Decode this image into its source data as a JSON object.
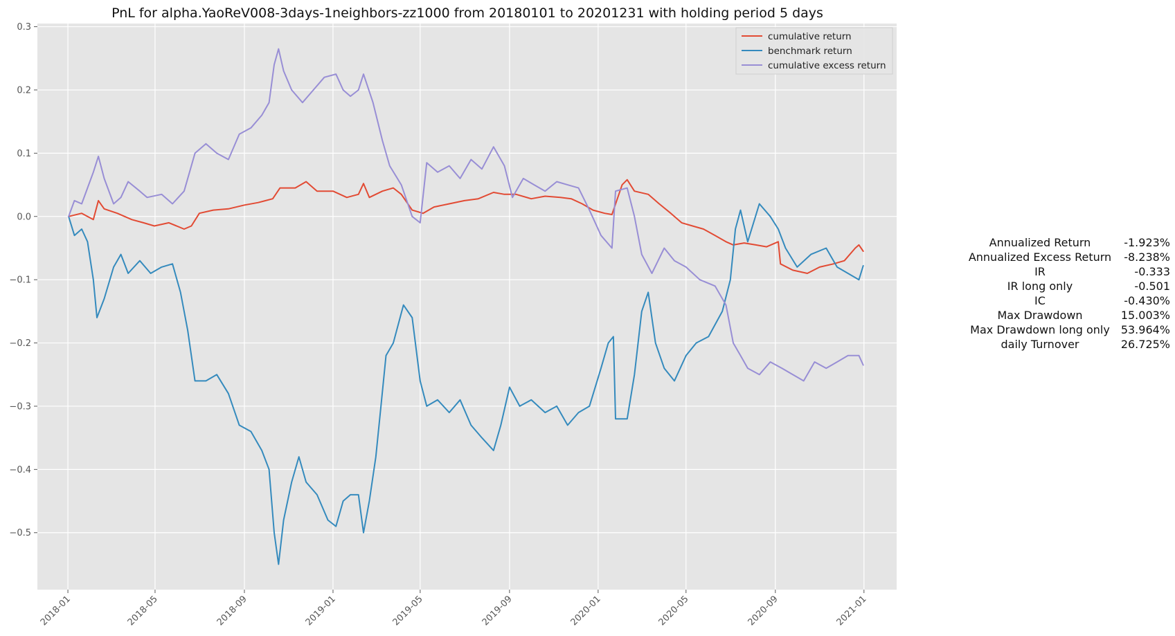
{
  "chart_data": {
    "type": "line",
    "title": "PnL for alpha.YaoReV008-3days-1neighbors-zz1000 from 20180101 to 20201231 with holding period 5 days",
    "xlabel": "",
    "ylabel": "",
    "x_range": [
      "2017-11-20",
      "2021-02-15"
    ],
    "ylim": [
      -0.59,
      0.305
    ],
    "grid": true,
    "legend_position": "top-right",
    "x_ticks": [
      "2018-01",
      "2018-05",
      "2018-09",
      "2019-01",
      "2019-05",
      "2019-09",
      "2020-01",
      "2020-05",
      "2020-09",
      "2021-01"
    ],
    "y_ticks": [
      0.3,
      0.2,
      0.1,
      0.0,
      -0.1,
      -0.2,
      -0.3,
      -0.4,
      -0.5
    ],
    "y_tick_labels": [
      "0.3",
      "0.2",
      "0.1",
      "0.0",
      "−0.1",
      "−0.2",
      "−0.3",
      "−0.4",
      "−0.5"
    ],
    "series": [
      {
        "name": "cumulative return",
        "color": "#e24a33",
        "points": [
          [
            "2018-01-02",
            0.0
          ],
          [
            "2018-01-20",
            0.005
          ],
          [
            "2018-02-05",
            -0.005
          ],
          [
            "2018-02-12",
            0.025
          ],
          [
            "2018-02-20",
            0.012
          ],
          [
            "2018-03-10",
            0.005
          ],
          [
            "2018-03-30",
            -0.005
          ],
          [
            "2018-04-15",
            -0.01
          ],
          [
            "2018-04-30",
            -0.015
          ],
          [
            "2018-05-20",
            -0.01
          ],
          [
            "2018-06-10",
            -0.02
          ],
          [
            "2018-06-20",
            -0.015
          ],
          [
            "2018-07-01",
            0.005
          ],
          [
            "2018-07-20",
            0.01
          ],
          [
            "2018-08-10",
            0.012
          ],
          [
            "2018-09-01",
            0.018
          ],
          [
            "2018-09-20",
            0.022
          ],
          [
            "2018-10-10",
            0.028
          ],
          [
            "2018-10-20",
            0.045
          ],
          [
            "2018-11-10",
            0.045
          ],
          [
            "2018-11-25",
            0.055
          ],
          [
            "2018-12-10",
            0.04
          ],
          [
            "2019-01-01",
            0.04
          ],
          [
            "2019-01-20",
            0.03
          ],
          [
            "2019-02-05",
            0.035
          ],
          [
            "2019-02-12",
            0.052
          ],
          [
            "2019-02-20",
            0.03
          ],
          [
            "2019-03-10",
            0.04
          ],
          [
            "2019-03-25",
            0.045
          ],
          [
            "2019-04-05",
            0.035
          ],
          [
            "2019-04-20",
            0.01
          ],
          [
            "2019-05-05",
            0.005
          ],
          [
            "2019-05-20",
            0.015
          ],
          [
            "2019-06-10",
            0.02
          ],
          [
            "2019-07-01",
            0.025
          ],
          [
            "2019-07-20",
            0.028
          ],
          [
            "2019-08-10",
            0.038
          ],
          [
            "2019-08-25",
            0.035
          ],
          [
            "2019-09-10",
            0.035
          ],
          [
            "2019-10-01",
            0.028
          ],
          [
            "2019-10-20",
            0.032
          ],
          [
            "2019-11-10",
            0.03
          ],
          [
            "2019-11-25",
            0.028
          ],
          [
            "2019-12-10",
            0.02
          ],
          [
            "2019-12-25",
            0.01
          ],
          [
            "2020-01-10",
            0.005
          ],
          [
            "2020-01-20",
            0.003
          ],
          [
            "2020-02-03",
            0.05
          ],
          [
            "2020-02-10",
            0.058
          ],
          [
            "2020-02-20",
            0.04
          ],
          [
            "2020-03-10",
            0.035
          ],
          [
            "2020-03-25",
            0.02
          ],
          [
            "2020-04-10",
            0.005
          ],
          [
            "2020-04-25",
            -0.01
          ],
          [
            "2020-05-10",
            -0.015
          ],
          [
            "2020-05-25",
            -0.02
          ],
          [
            "2020-06-10",
            -0.03
          ],
          [
            "2020-06-25",
            -0.04
          ],
          [
            "2020-07-05",
            -0.045
          ],
          [
            "2020-07-20",
            -0.042
          ],
          [
            "2020-08-05",
            -0.045
          ],
          [
            "2020-08-20",
            -0.048
          ],
          [
            "2020-09-05",
            -0.04
          ],
          [
            "2020-09-08",
            -0.075
          ],
          [
            "2020-09-25",
            -0.085
          ],
          [
            "2020-10-15",
            -0.09
          ],
          [
            "2020-11-01",
            -0.08
          ],
          [
            "2020-11-20",
            -0.075
          ],
          [
            "2020-12-05",
            -0.07
          ],
          [
            "2020-12-20",
            -0.05
          ],
          [
            "2020-12-25",
            -0.045
          ],
          [
            "2020-12-31",
            -0.055
          ]
        ]
      },
      {
        "name": "benchmark return",
        "color": "#348abd",
        "points": [
          [
            "2018-01-02",
            0.0
          ],
          [
            "2018-01-10",
            -0.03
          ],
          [
            "2018-01-20",
            -0.02
          ],
          [
            "2018-01-28",
            -0.04
          ],
          [
            "2018-02-05",
            -0.1
          ],
          [
            "2018-02-10",
            -0.16
          ],
          [
            "2018-02-20",
            -0.13
          ],
          [
            "2018-03-05",
            -0.08
          ],
          [
            "2018-03-15",
            -0.06
          ],
          [
            "2018-03-25",
            -0.09
          ],
          [
            "2018-04-10",
            -0.07
          ],
          [
            "2018-04-25",
            -0.09
          ],
          [
            "2018-05-10",
            -0.08
          ],
          [
            "2018-05-25",
            -0.075
          ],
          [
            "2018-06-05",
            -0.12
          ],
          [
            "2018-06-15",
            -0.18
          ],
          [
            "2018-06-25",
            -0.26
          ],
          [
            "2018-07-10",
            -0.26
          ],
          [
            "2018-07-25",
            -0.25
          ],
          [
            "2018-08-10",
            -0.28
          ],
          [
            "2018-08-25",
            -0.33
          ],
          [
            "2018-09-10",
            -0.34
          ],
          [
            "2018-09-25",
            -0.37
          ],
          [
            "2018-10-05",
            -0.4
          ],
          [
            "2018-10-12",
            -0.5
          ],
          [
            "2018-10-18",
            -0.55
          ],
          [
            "2018-10-25",
            -0.48
          ],
          [
            "2018-11-05",
            -0.42
          ],
          [
            "2018-11-15",
            -0.38
          ],
          [
            "2018-11-25",
            -0.42
          ],
          [
            "2018-12-10",
            -0.44
          ],
          [
            "2018-12-25",
            -0.48
          ],
          [
            "2019-01-05",
            -0.49
          ],
          [
            "2019-01-15",
            -0.45
          ],
          [
            "2019-01-25",
            -0.44
          ],
          [
            "2019-02-05",
            -0.44
          ],
          [
            "2019-02-12",
            -0.5
          ],
          [
            "2019-02-20",
            -0.45
          ],
          [
            "2019-03-01",
            -0.38
          ],
          [
            "2019-03-08",
            -0.3
          ],
          [
            "2019-03-15",
            -0.22
          ],
          [
            "2019-03-25",
            -0.2
          ],
          [
            "2019-04-08",
            -0.14
          ],
          [
            "2019-04-20",
            -0.16
          ],
          [
            "2019-05-01",
            -0.26
          ],
          [
            "2019-05-10",
            -0.3
          ],
          [
            "2019-05-25",
            -0.29
          ],
          [
            "2019-06-10",
            -0.31
          ],
          [
            "2019-06-25",
            -0.29
          ],
          [
            "2019-07-10",
            -0.33
          ],
          [
            "2019-07-25",
            -0.35
          ],
          [
            "2019-08-10",
            -0.37
          ],
          [
            "2019-08-20",
            -0.33
          ],
          [
            "2019-09-01",
            -0.27
          ],
          [
            "2019-09-15",
            -0.3
          ],
          [
            "2019-10-01",
            -0.29
          ],
          [
            "2019-10-20",
            -0.31
          ],
          [
            "2019-11-05",
            -0.3
          ],
          [
            "2019-11-20",
            -0.33
          ],
          [
            "2019-12-05",
            -0.31
          ],
          [
            "2019-12-20",
            -0.3
          ],
          [
            "2020-01-05",
            -0.24
          ],
          [
            "2020-01-15",
            -0.2
          ],
          [
            "2020-01-22",
            -0.19
          ],
          [
            "2020-01-25",
            -0.32
          ],
          [
            "2020-02-10",
            -0.32
          ],
          [
            "2020-02-20",
            -0.25
          ],
          [
            "2020-03-01",
            -0.15
          ],
          [
            "2020-03-10",
            -0.12
          ],
          [
            "2020-03-20",
            -0.2
          ],
          [
            "2020-04-01",
            -0.24
          ],
          [
            "2020-04-15",
            -0.26
          ],
          [
            "2020-05-01",
            -0.22
          ],
          [
            "2020-05-15",
            -0.2
          ],
          [
            "2020-06-01",
            -0.19
          ],
          [
            "2020-06-20",
            -0.15
          ],
          [
            "2020-07-01",
            -0.1
          ],
          [
            "2020-07-08",
            -0.02
          ],
          [
            "2020-07-15",
            0.01
          ],
          [
            "2020-07-25",
            -0.04
          ],
          [
            "2020-08-10",
            0.02
          ],
          [
            "2020-08-25",
            0.0
          ],
          [
            "2020-09-05",
            -0.02
          ],
          [
            "2020-09-15",
            -0.05
          ],
          [
            "2020-10-01",
            -0.08
          ],
          [
            "2020-10-20",
            -0.06
          ],
          [
            "2020-11-10",
            -0.05
          ],
          [
            "2020-11-25",
            -0.08
          ],
          [
            "2020-12-10",
            -0.09
          ],
          [
            "2020-12-25",
            -0.1
          ],
          [
            "2020-12-31",
            -0.078
          ]
        ]
      },
      {
        "name": "cumulative excess return",
        "color": "#988ed5",
        "points": [
          [
            "2018-01-02",
            0.0
          ],
          [
            "2018-01-10",
            0.025
          ],
          [
            "2018-01-20",
            0.02
          ],
          [
            "2018-02-05",
            0.07
          ],
          [
            "2018-02-12",
            0.095
          ],
          [
            "2018-02-20",
            0.06
          ],
          [
            "2018-03-05",
            0.02
          ],
          [
            "2018-03-15",
            0.03
          ],
          [
            "2018-03-25",
            0.055
          ],
          [
            "2018-04-10",
            0.04
          ],
          [
            "2018-04-20",
            0.03
          ],
          [
            "2018-05-10",
            0.035
          ],
          [
            "2018-05-25",
            0.02
          ],
          [
            "2018-06-10",
            0.04
          ],
          [
            "2018-06-25",
            0.1
          ],
          [
            "2018-07-10",
            0.115
          ],
          [
            "2018-07-25",
            0.1
          ],
          [
            "2018-08-10",
            0.09
          ],
          [
            "2018-08-25",
            0.13
          ],
          [
            "2018-09-10",
            0.14
          ],
          [
            "2018-09-25",
            0.16
          ],
          [
            "2018-10-05",
            0.18
          ],
          [
            "2018-10-12",
            0.24
          ],
          [
            "2018-10-18",
            0.265
          ],
          [
            "2018-10-25",
            0.23
          ],
          [
            "2018-11-05",
            0.2
          ],
          [
            "2018-11-20",
            0.18
          ],
          [
            "2018-12-05",
            0.2
          ],
          [
            "2018-12-20",
            0.22
          ],
          [
            "2019-01-05",
            0.225
          ],
          [
            "2019-01-15",
            0.2
          ],
          [
            "2019-01-25",
            0.19
          ],
          [
            "2019-02-05",
            0.2
          ],
          [
            "2019-02-12",
            0.225
          ],
          [
            "2019-02-25",
            0.18
          ],
          [
            "2019-03-10",
            0.12
          ],
          [
            "2019-03-20",
            0.08
          ],
          [
            "2019-04-05",
            0.05
          ],
          [
            "2019-04-20",
            0.0
          ],
          [
            "2019-05-01",
            -0.01
          ],
          [
            "2019-05-10",
            0.085
          ],
          [
            "2019-05-25",
            0.07
          ],
          [
            "2019-06-10",
            0.08
          ],
          [
            "2019-06-25",
            0.06
          ],
          [
            "2019-07-10",
            0.09
          ],
          [
            "2019-07-25",
            0.075
          ],
          [
            "2019-08-10",
            0.11
          ],
          [
            "2019-08-25",
            0.08
          ],
          [
            "2019-09-05",
            0.03
          ],
          [
            "2019-09-20",
            0.06
          ],
          [
            "2019-10-05",
            0.05
          ],
          [
            "2019-10-20",
            0.04
          ],
          [
            "2019-11-05",
            0.055
          ],
          [
            "2019-11-20",
            0.05
          ],
          [
            "2019-12-05",
            0.045
          ],
          [
            "2019-12-20",
            0.01
          ],
          [
            "2020-01-05",
            -0.03
          ],
          [
            "2020-01-20",
            -0.05
          ],
          [
            "2020-01-25",
            0.04
          ],
          [
            "2020-02-10",
            0.045
          ],
          [
            "2020-02-20",
            0.0
          ],
          [
            "2020-03-01",
            -0.06
          ],
          [
            "2020-03-15",
            -0.09
          ],
          [
            "2020-04-01",
            -0.05
          ],
          [
            "2020-04-15",
            -0.07
          ],
          [
            "2020-05-01",
            -0.08
          ],
          [
            "2020-05-20",
            -0.1
          ],
          [
            "2020-06-10",
            -0.11
          ],
          [
            "2020-06-25",
            -0.14
          ],
          [
            "2020-07-05",
            -0.2
          ],
          [
            "2020-07-15",
            -0.22
          ],
          [
            "2020-07-25",
            -0.24
          ],
          [
            "2020-08-10",
            -0.25
          ],
          [
            "2020-08-25",
            -0.23
          ],
          [
            "2020-09-10",
            -0.24
          ],
          [
            "2020-09-25",
            -0.25
          ],
          [
            "2020-10-10",
            -0.26
          ],
          [
            "2020-10-25",
            -0.23
          ],
          [
            "2020-11-10",
            -0.24
          ],
          [
            "2020-11-25",
            -0.23
          ],
          [
            "2020-12-10",
            -0.22
          ],
          [
            "2020-12-25",
            -0.22
          ],
          [
            "2020-12-31",
            -0.235
          ]
        ]
      }
    ],
    "stats": [
      {
        "label": "Annualized Return",
        "value": "-1.923%"
      },
      {
        "label": "Annualized Excess Return",
        "value": "-8.238%"
      },
      {
        "label": "IR",
        "value": "-0.333"
      },
      {
        "label": "IR long only",
        "value": "-0.501"
      },
      {
        "label": "IC",
        "value": "-0.430%"
      },
      {
        "label": "Max Drawdown",
        "value": "15.003%"
      },
      {
        "label": "Max Drawdown long only",
        "value": "53.964%"
      },
      {
        "label": "daily Turnover",
        "value": "26.725%"
      }
    ]
  }
}
